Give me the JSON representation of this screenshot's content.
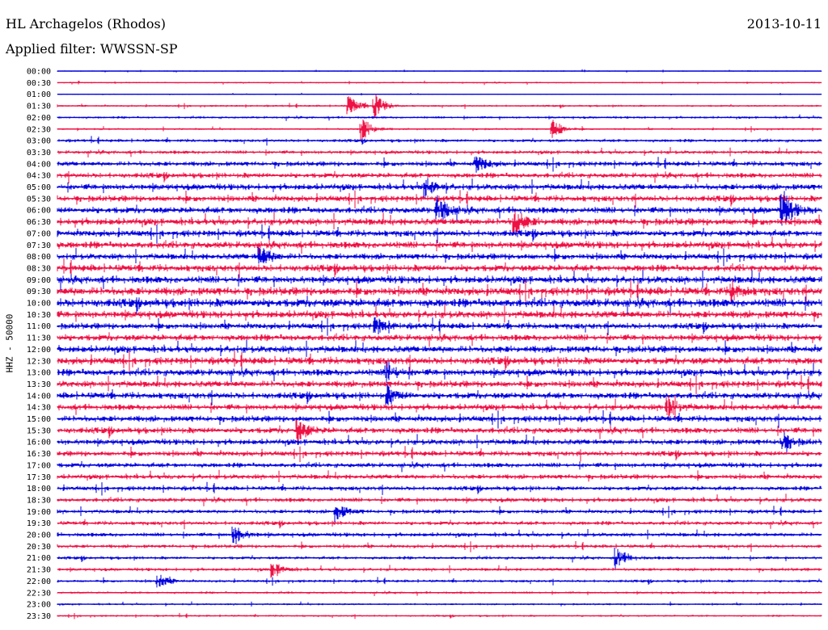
{
  "header": {
    "station": "HL Archagelos (Rhodos)",
    "filter": "Applied filter: WWSSN-SP",
    "date": "2013-10-11"
  },
  "chart_data": {
    "type": "line",
    "title": "HL Archagelos (Rhodos)",
    "subtitle": "Applied filter: WWSSN-SP",
    "date": "2013-10-11",
    "ylabel": "HHZ - 50000",
    "row_labels": [
      "00:00",
      "00:30",
      "01:00",
      "01:30",
      "02:00",
      "02:30",
      "03:00",
      "03:30",
      "04:00",
      "04:30",
      "05:00",
      "05:30",
      "06:00",
      "06:30",
      "07:00",
      "07:30",
      "08:00",
      "08:30",
      "09:00",
      "09:30",
      "10:00",
      "10:30",
      "11:00",
      "11:30",
      "12:00",
      "12:30",
      "13:00",
      "13:30",
      "14:00",
      "14:30",
      "15:00",
      "15:30",
      "16:00",
      "16:30",
      "17:00",
      "17:30",
      "18:00",
      "18:30",
      "19:00",
      "19:30",
      "20:00",
      "20:30",
      "21:00",
      "21:30",
      "22:00",
      "22:30",
      "23:00",
      "23:30"
    ],
    "row_minutes": 30,
    "colors": [
      "#0000dd",
      "#ee1144"
    ],
    "noise_level": [
      0.6,
      0.8,
      0.5,
      1.0,
      1.2,
      1.0,
      1.6,
      1.8,
      2.4,
      2.6,
      3.0,
      3.0,
      3.2,
      3.4,
      3.2,
      3.4,
      3.0,
      3.4,
      3.6,
      4.0,
      4.2,
      3.6,
      3.0,
      3.2,
      3.4,
      3.6,
      3.4,
      3.2,
      3.2,
      3.0,
      3.0,
      3.0,
      2.8,
      2.6,
      2.4,
      2.4,
      2.2,
      2.2,
      2.0,
      2.0,
      2.0,
      1.8,
      1.6,
      1.6,
      1.4,
      1.2,
      1.0,
      1.0
    ],
    "events": [
      {
        "row": 3,
        "minute": 11.5,
        "amp": 12
      },
      {
        "row": 3,
        "minute": 12.5,
        "amp": 14
      },
      {
        "row": 5,
        "minute": 12.0,
        "amp": 14
      },
      {
        "row": 5,
        "minute": 19.5,
        "amp": 12
      },
      {
        "row": 8,
        "minute": 16.5,
        "amp": 10
      },
      {
        "row": 10,
        "minute": 14.5,
        "amp": 10
      },
      {
        "row": 12,
        "minute": 15.0,
        "amp": 16
      },
      {
        "row": 12,
        "minute": 28.5,
        "amp": 22
      },
      {
        "row": 13,
        "minute": 18.0,
        "amp": 14
      },
      {
        "row": 16,
        "minute": 8.0,
        "amp": 12
      },
      {
        "row": 19,
        "minute": 26.5,
        "amp": 10
      },
      {
        "row": 22,
        "minute": 12.5,
        "amp": 10
      },
      {
        "row": 26,
        "minute": 13.0,
        "amp": 10
      },
      {
        "row": 28,
        "minute": 13.0,
        "amp": 10
      },
      {
        "row": 29,
        "minute": 24.0,
        "amp": 14
      },
      {
        "row": 31,
        "minute": 9.5,
        "amp": 12
      },
      {
        "row": 32,
        "minute": 28.5,
        "amp": 12
      },
      {
        "row": 38,
        "minute": 11.0,
        "amp": 10
      },
      {
        "row": 40,
        "minute": 7.0,
        "amp": 10
      },
      {
        "row": 42,
        "minute": 22.0,
        "amp": 12
      },
      {
        "row": 43,
        "minute": 8.5,
        "amp": 9
      },
      {
        "row": 44,
        "minute": 4.0,
        "amp": 8
      }
    ]
  }
}
